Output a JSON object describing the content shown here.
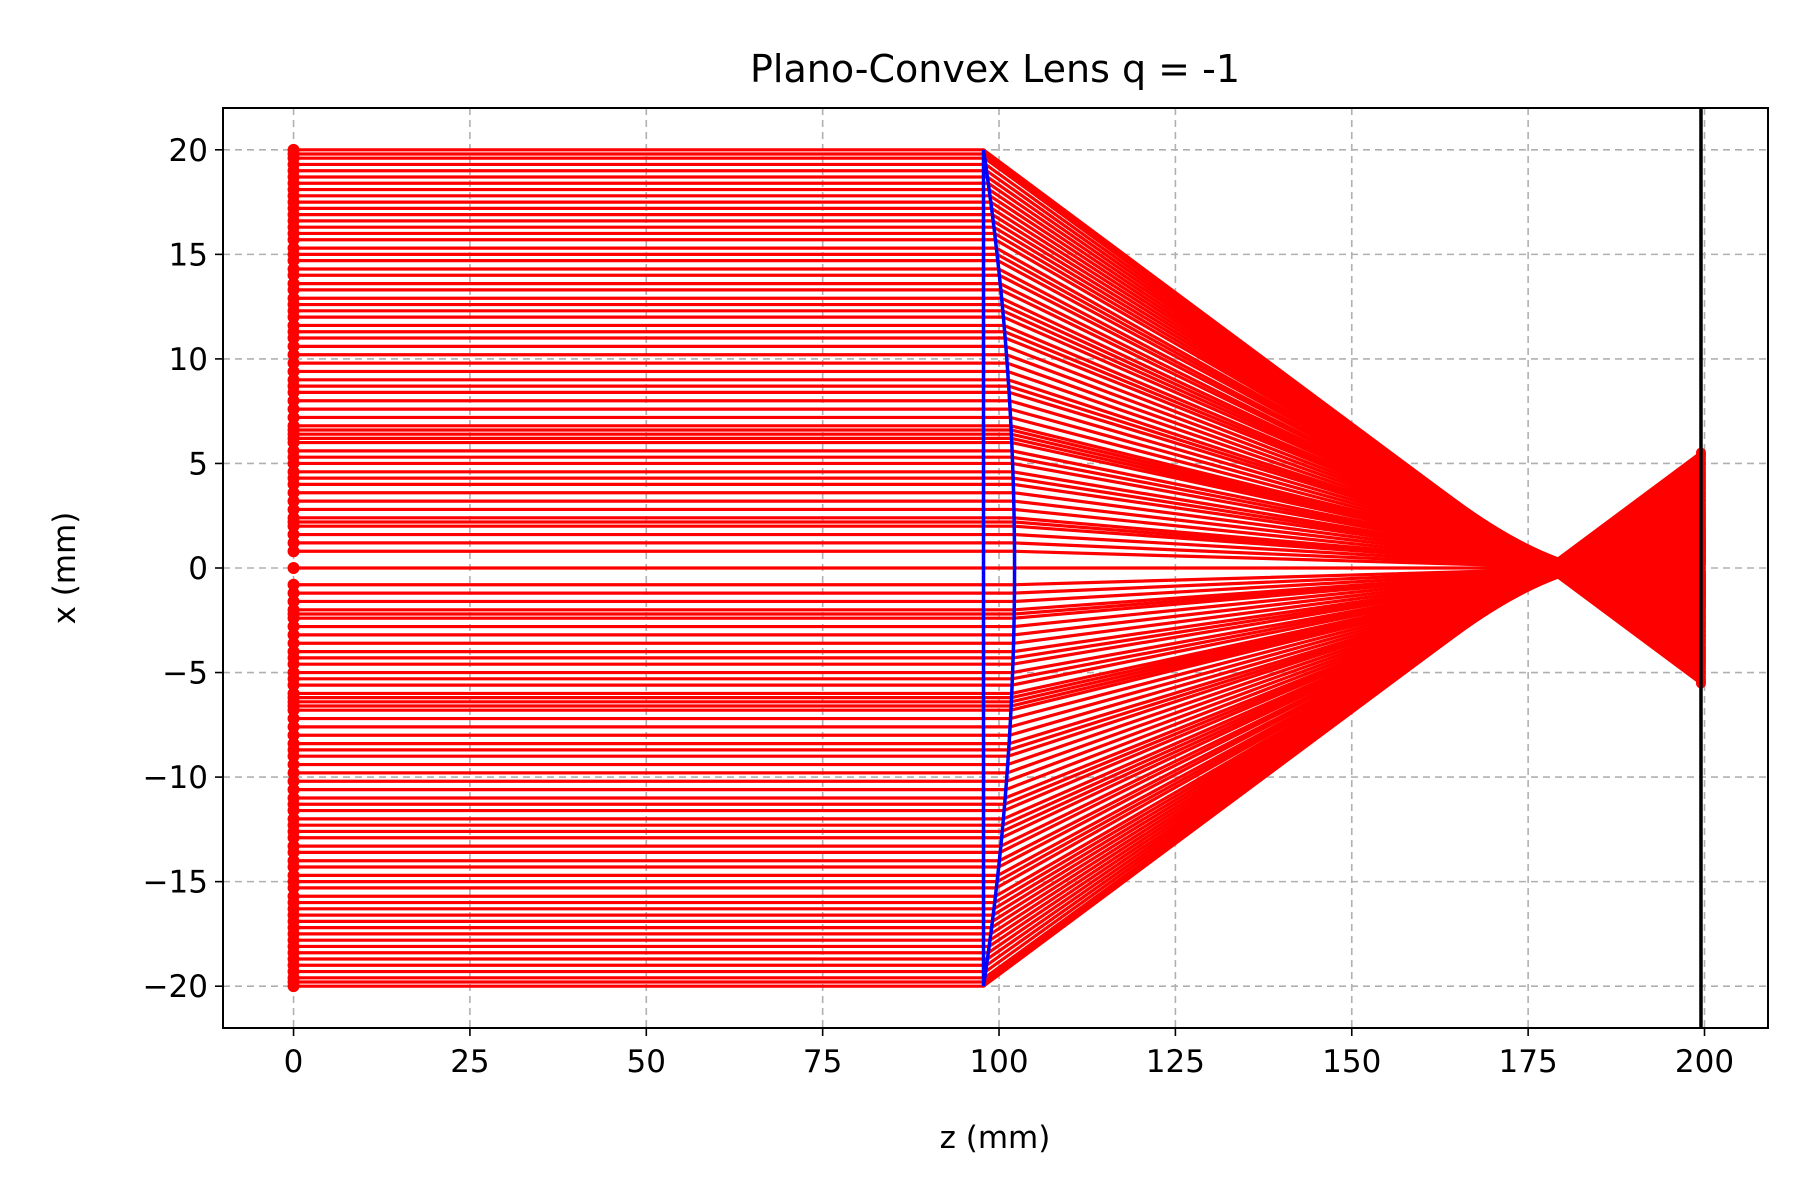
{
  "chart_data": {
    "type": "line",
    "title": "Plano-Convex Lens q = -1",
    "xlabel": "z (mm)",
    "ylabel": "x (mm)",
    "xlim": [
      -10,
      209
    ],
    "ylim": [
      -22,
      22
    ],
    "xticks": [
      0,
      25,
      50,
      75,
      100,
      125,
      150,
      175,
      200
    ],
    "xtick_labels": [
      "0",
      "25",
      "50",
      "75",
      "100",
      "125",
      "150",
      "175",
      "200"
    ],
    "yticks": [
      20,
      15,
      10,
      5,
      0,
      -5,
      -10,
      -15,
      -20
    ],
    "ytick_labels": [
      "20",
      "15",
      "10",
      "5",
      "0",
      "−5",
      "−10",
      "−15",
      "−20"
    ],
    "grid": true,
    "rays": {
      "source_z": 0,
      "lens_plane_z": 97.8,
      "lens_apex_z": 102.2,
      "focus_z": 184.5,
      "screen_z": 199.5,
      "heights": [
        20,
        19.8,
        19.6,
        19.3,
        19,
        18.7,
        18.4,
        18.1,
        17.8,
        17.5,
        17.2,
        16.9,
        16.6,
        16.3,
        16,
        15.7,
        15.3,
        15,
        14.7,
        14.3,
        14,
        13.6,
        13.3,
        12.9,
        12.6,
        12.3,
        12,
        11.6,
        11.3,
        11,
        10.6,
        10.2,
        9.8,
        9.4,
        9,
        8.7,
        8.4,
        8,
        7.6,
        7.2,
        6.8,
        6.6,
        6.4,
        6.2,
        6,
        5.6,
        5.3,
        5,
        4.6,
        4.3,
        4,
        3.6,
        3.2,
        2.8,
        2.4,
        2.2,
        2,
        1.6,
        1.2,
        0.8,
        0,
        -0.8,
        -1.2,
        -1.6,
        -2,
        -2.2,
        -2.4,
        -2.8,
        -3.2,
        -3.6,
        -4,
        -4.3,
        -4.6,
        -5,
        -5.3,
        -5.6,
        -6,
        -6.2,
        -6.4,
        -6.6,
        -6.8,
        -7.2,
        -7.6,
        -8,
        -8.4,
        -8.7,
        -9,
        -9.4,
        -9.8,
        -10.2,
        -10.6,
        -11,
        -11.3,
        -11.6,
        -12,
        -12.3,
        -12.6,
        -12.9,
        -13.3,
        -13.6,
        -14,
        -14.3,
        -14.7,
        -15,
        -15.3,
        -15.7,
        -16,
        -16.3,
        -16.6,
        -16.9,
        -17.2,
        -17.5,
        -17.8,
        -18.1,
        -18.4,
        -18.7,
        -19,
        -19.3,
        -19.6,
        -19.8,
        -20
      ]
    },
    "colors": {
      "rays": "#ff0000",
      "lens": "#0000ff",
      "screen": "#000000",
      "grid": "#b0b0b0"
    }
  }
}
